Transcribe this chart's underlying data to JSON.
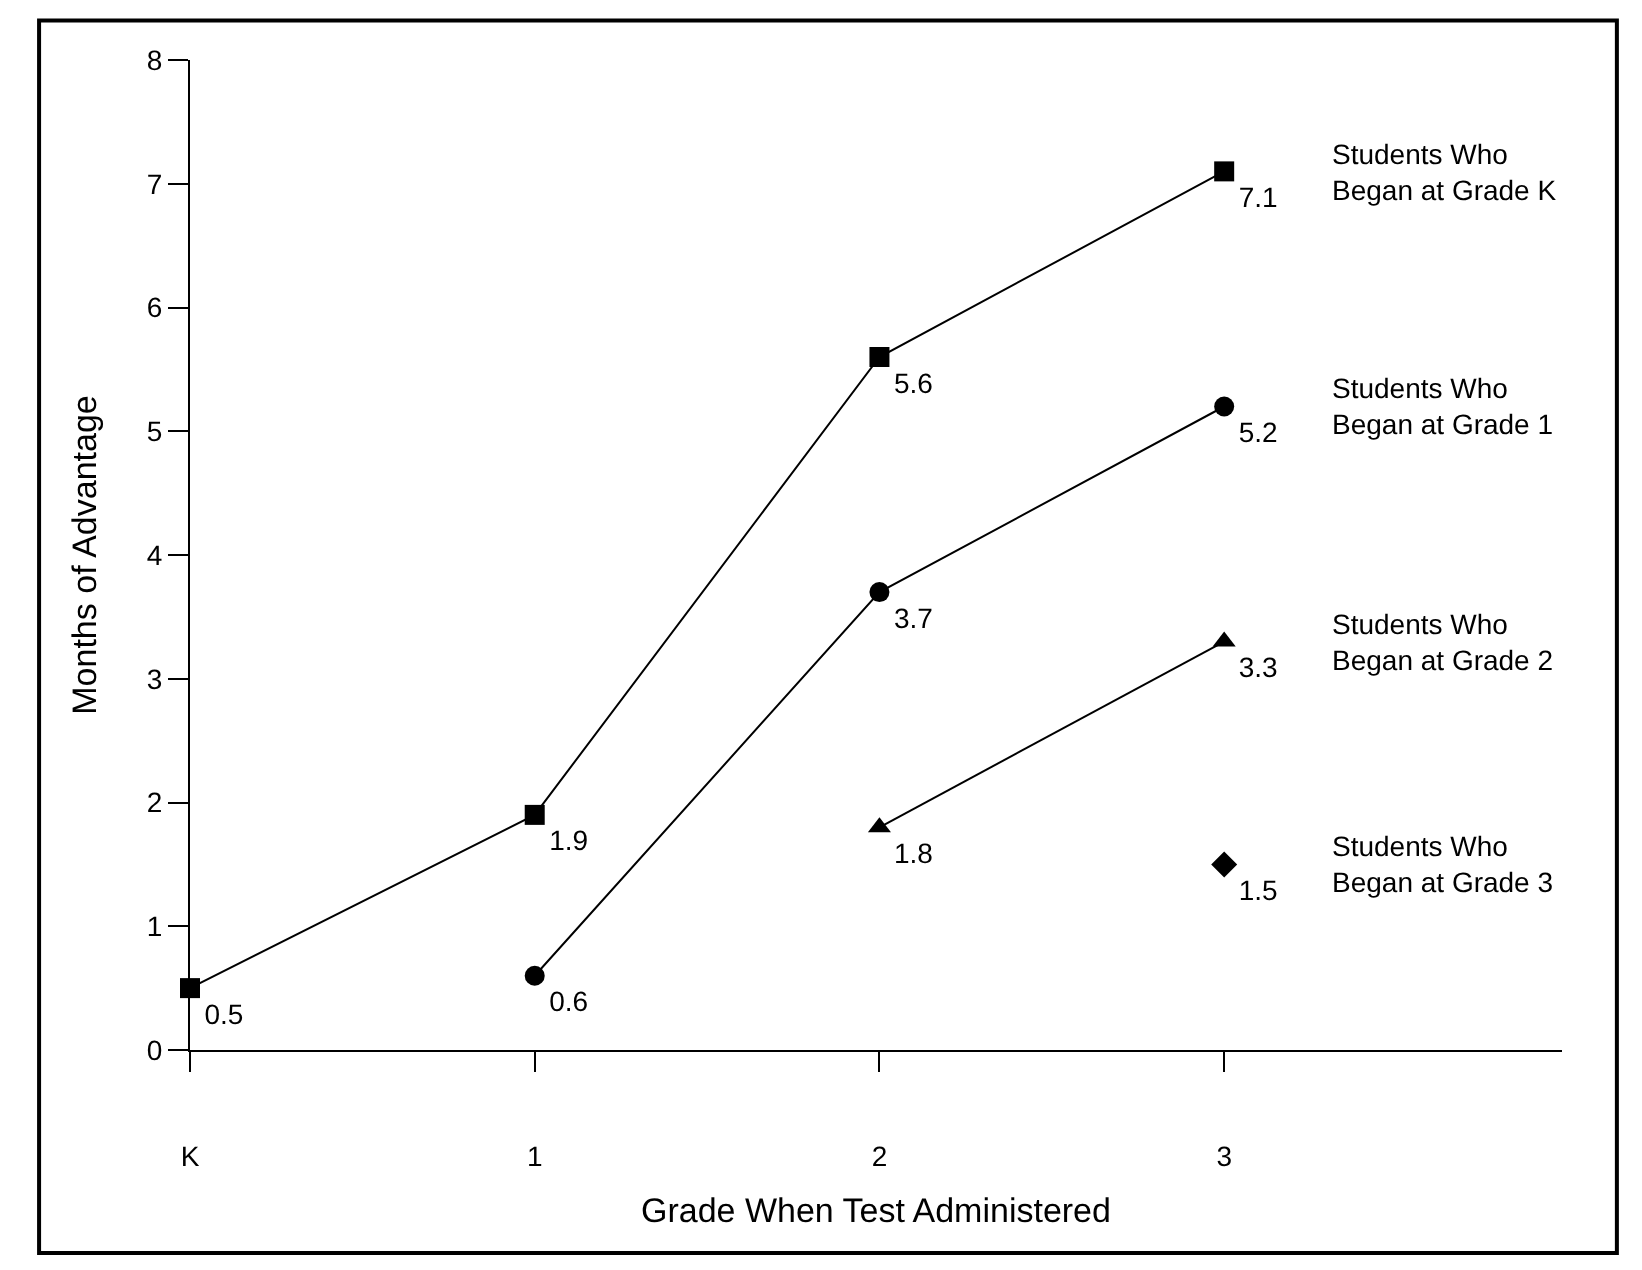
{
  "chart_data": {
    "type": "line",
    "xlabel": "Grade When Test Administered",
    "ylabel": "Months of Advantage",
    "categories": [
      "K",
      "1",
      "2",
      "3"
    ],
    "ylim": [
      0,
      8
    ],
    "yticks": [
      0,
      1,
      2,
      3,
      4,
      5,
      6,
      7,
      8
    ],
    "grid": false,
    "legend": false,
    "data_labels": true,
    "series": [
      {
        "name": "Students Who\nBegan at Grade K",
        "color": "#000000",
        "marker": "square",
        "values": [
          0.5,
          1.9,
          5.6,
          7.1
        ]
      },
      {
        "name": "Students Who\nBegan at Grade 1",
        "color": "#000000",
        "marker": "circle",
        "values": [
          null,
          0.6,
          3.7,
          5.2
        ]
      },
      {
        "name": "Students Who\nBegan at Grade 2",
        "color": "#000000",
        "marker": "triangle",
        "values": [
          null,
          null,
          1.8,
          3.3
        ]
      },
      {
        "name": "Students Who\nBegan at Grade 3",
        "color": "#000000",
        "marker": "diamond",
        "values": [
          null,
          null,
          null,
          1.5
        ]
      }
    ]
  }
}
